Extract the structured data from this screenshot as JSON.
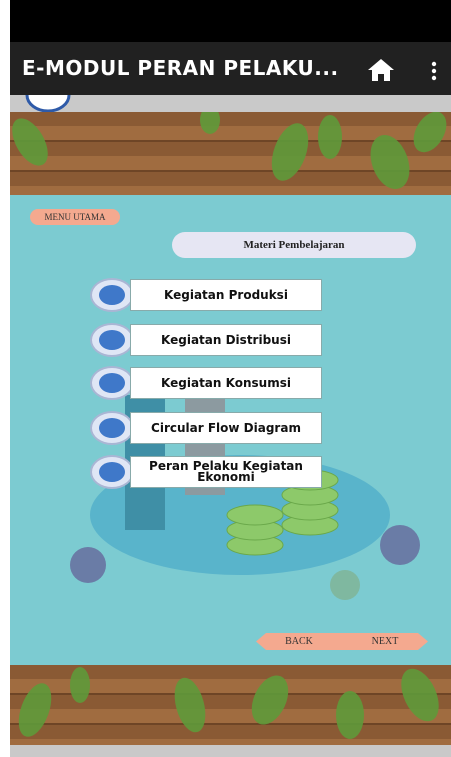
{
  "header": {
    "title": "E-MODUL PERAN PELAKU..."
  },
  "menu_button": "MENU UTAMA",
  "section_title": "Materi Pembelajaran",
  "menu_items": [
    "Kegiatan Produksi",
    "Kegiatan Distribusi",
    "Kegiatan Konsumsi",
    "Circular Flow Diagram",
    "Peran Pelaku Kegiatan Ekonomi"
  ],
  "nav": {
    "back": "BACK",
    "next": "NEXT"
  }
}
